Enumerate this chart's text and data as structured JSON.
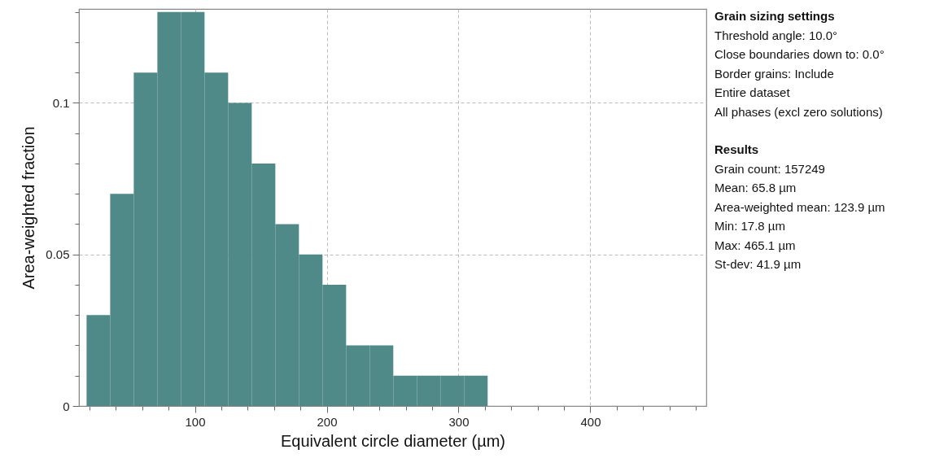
{
  "chart_data": {
    "type": "histogram",
    "xlabel": "Equivalent circle diameter (µm)",
    "ylabel": "Area-weighted fraction",
    "bins": [
      17.8,
      35.7,
      53.6,
      71.5,
      89.4,
      107.3,
      125.2,
      143.1,
      161.0,
      178.9,
      196.8,
      214.7,
      232.6,
      250.5,
      268.4,
      286.3,
      304.2,
      322.1
    ],
    "values": [
      0.03,
      0.07,
      0.11,
      0.13,
      0.13,
      0.11,
      0.1,
      0.08,
      0.06,
      0.05,
      0.04,
      0.02,
      0.02,
      0.01,
      0.01,
      0.01,
      0.01
    ],
    "color": "#4f8a88",
    "xlim": [
      12,
      488
    ],
    "ylim": [
      0,
      0.131
    ],
    "xticks": [
      {
        "value": 20,
        "label": null
      },
      {
        "value": 40,
        "label": null
      },
      {
        "value": 60,
        "label": null
      },
      {
        "value": 80,
        "label": null
      },
      100,
      {
        "value": 120,
        "label": null
      },
      {
        "value": 140,
        "label": null
      },
      {
        "value": 160,
        "label": null
      },
      {
        "value": 180,
        "label": null
      },
      200,
      {
        "value": 220,
        "label": null
      },
      {
        "value": 240,
        "label": null
      },
      {
        "value": 260,
        "label": null
      },
      {
        "value": 280,
        "label": null
      },
      300,
      {
        "value": 320,
        "label": null
      },
      {
        "value": 340,
        "label": null
      },
      {
        "value": 360,
        "label": null
      },
      {
        "value": 380,
        "label": null
      },
      400,
      {
        "value": 420,
        "label": null
      },
      {
        "value": 440,
        "label": null
      },
      {
        "value": 460,
        "label": null
      },
      {
        "value": 480,
        "label": null
      }
    ],
    "yticks": [
      0,
      {
        "value": 0.01,
        "label": null
      },
      {
        "value": 0.02,
        "label": null
      },
      {
        "value": 0.03,
        "label": null
      },
      {
        "value": 0.04,
        "label": null
      },
      0.05,
      {
        "value": 0.06,
        "label": null
      },
      {
        "value": 0.07,
        "label": null
      },
      {
        "value": 0.08,
        "label": null
      },
      {
        "value": 0.09,
        "label": null
      },
      0.1,
      {
        "value": 0.11,
        "label": null
      },
      {
        "value": 0.12,
        "label": null
      },
      {
        "value": 0.13,
        "label": null
      }
    ],
    "grid": true,
    "annotations": [
      "Grain sizing settings",
      "Threshold angle: 10.0°",
      "Close boundaries down to: 0.0°",
      "Border grains: Include",
      "Entire dataset",
      "All phases (excl zero solutions)",
      "Results",
      "Grain count: 157249",
      "Mean: 65.8 µm",
      "Area-weighted mean: 123.9 µm",
      "Min: 17.8 µm",
      "Max: 465.1 µm",
      "St-dev: 41.9 µm"
    ]
  }
}
